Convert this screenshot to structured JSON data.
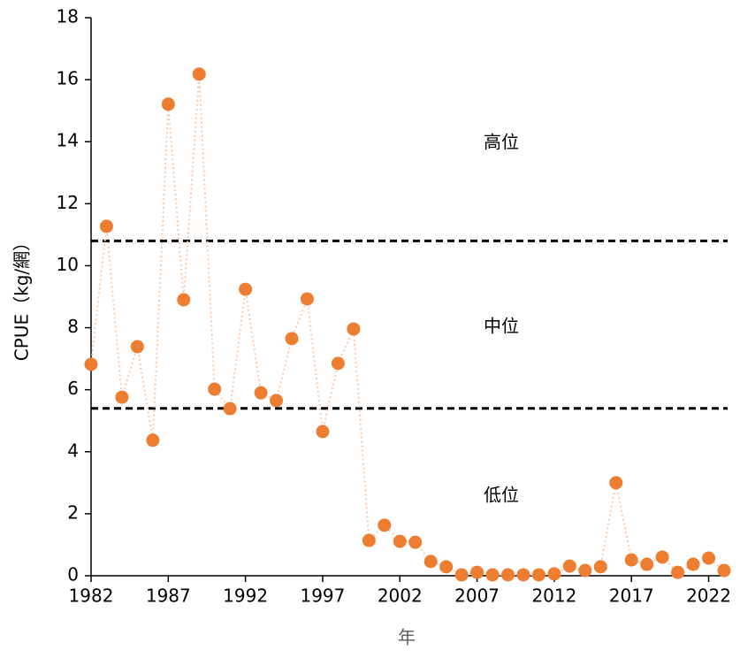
{
  "chart_data": {
    "type": "scatter",
    "x_label": "年",
    "y_label": "CPUE（kg/網）",
    "x": [
      1982,
      1983,
      1984,
      1985,
      1986,
      1987,
      1988,
      1989,
      1990,
      1991,
      1992,
      1993,
      1994,
      1995,
      1996,
      1997,
      1998,
      1999,
      2000,
      2001,
      2002,
      2003,
      2004,
      2005,
      2006,
      2007,
      2008,
      2009,
      2010,
      2011,
      2012,
      2013,
      2014,
      2015,
      2016,
      2017,
      2018,
      2019,
      2020,
      2021,
      2022,
      2023
    ],
    "values": [
      6.82,
      11.27,
      5.76,
      7.39,
      4.37,
      15.21,
      8.9,
      16.18,
      6.02,
      5.39,
      9.24,
      5.9,
      5.65,
      7.65,
      8.93,
      4.65,
      6.85,
      7.96,
      1.14,
      1.63,
      1.11,
      1.08,
      0.46,
      0.29,
      0.03,
      0.11,
      0.03,
      0.03,
      0.03,
      0.03,
      0.06,
      0.31,
      0.17,
      0.29,
      3.0,
      0.51,
      0.37,
      0.6,
      0.11,
      0.37,
      0.57,
      0.17
    ],
    "color": "#ed7d31",
    "line_color": "#f8cbad",
    "xlim": [
      1982,
      2023
    ],
    "xticks": [
      1982,
      1987,
      1992,
      1997,
      2002,
      2007,
      2012,
      2017,
      2022
    ],
    "ylim": [
      0,
      18
    ],
    "yticks": [
      0,
      2,
      4,
      6,
      8,
      10,
      12,
      14,
      16,
      18
    ],
    "hlines": [
      10.8,
      5.4
    ],
    "annotations": [
      "高位",
      "中位",
      "低位"
    ]
  }
}
